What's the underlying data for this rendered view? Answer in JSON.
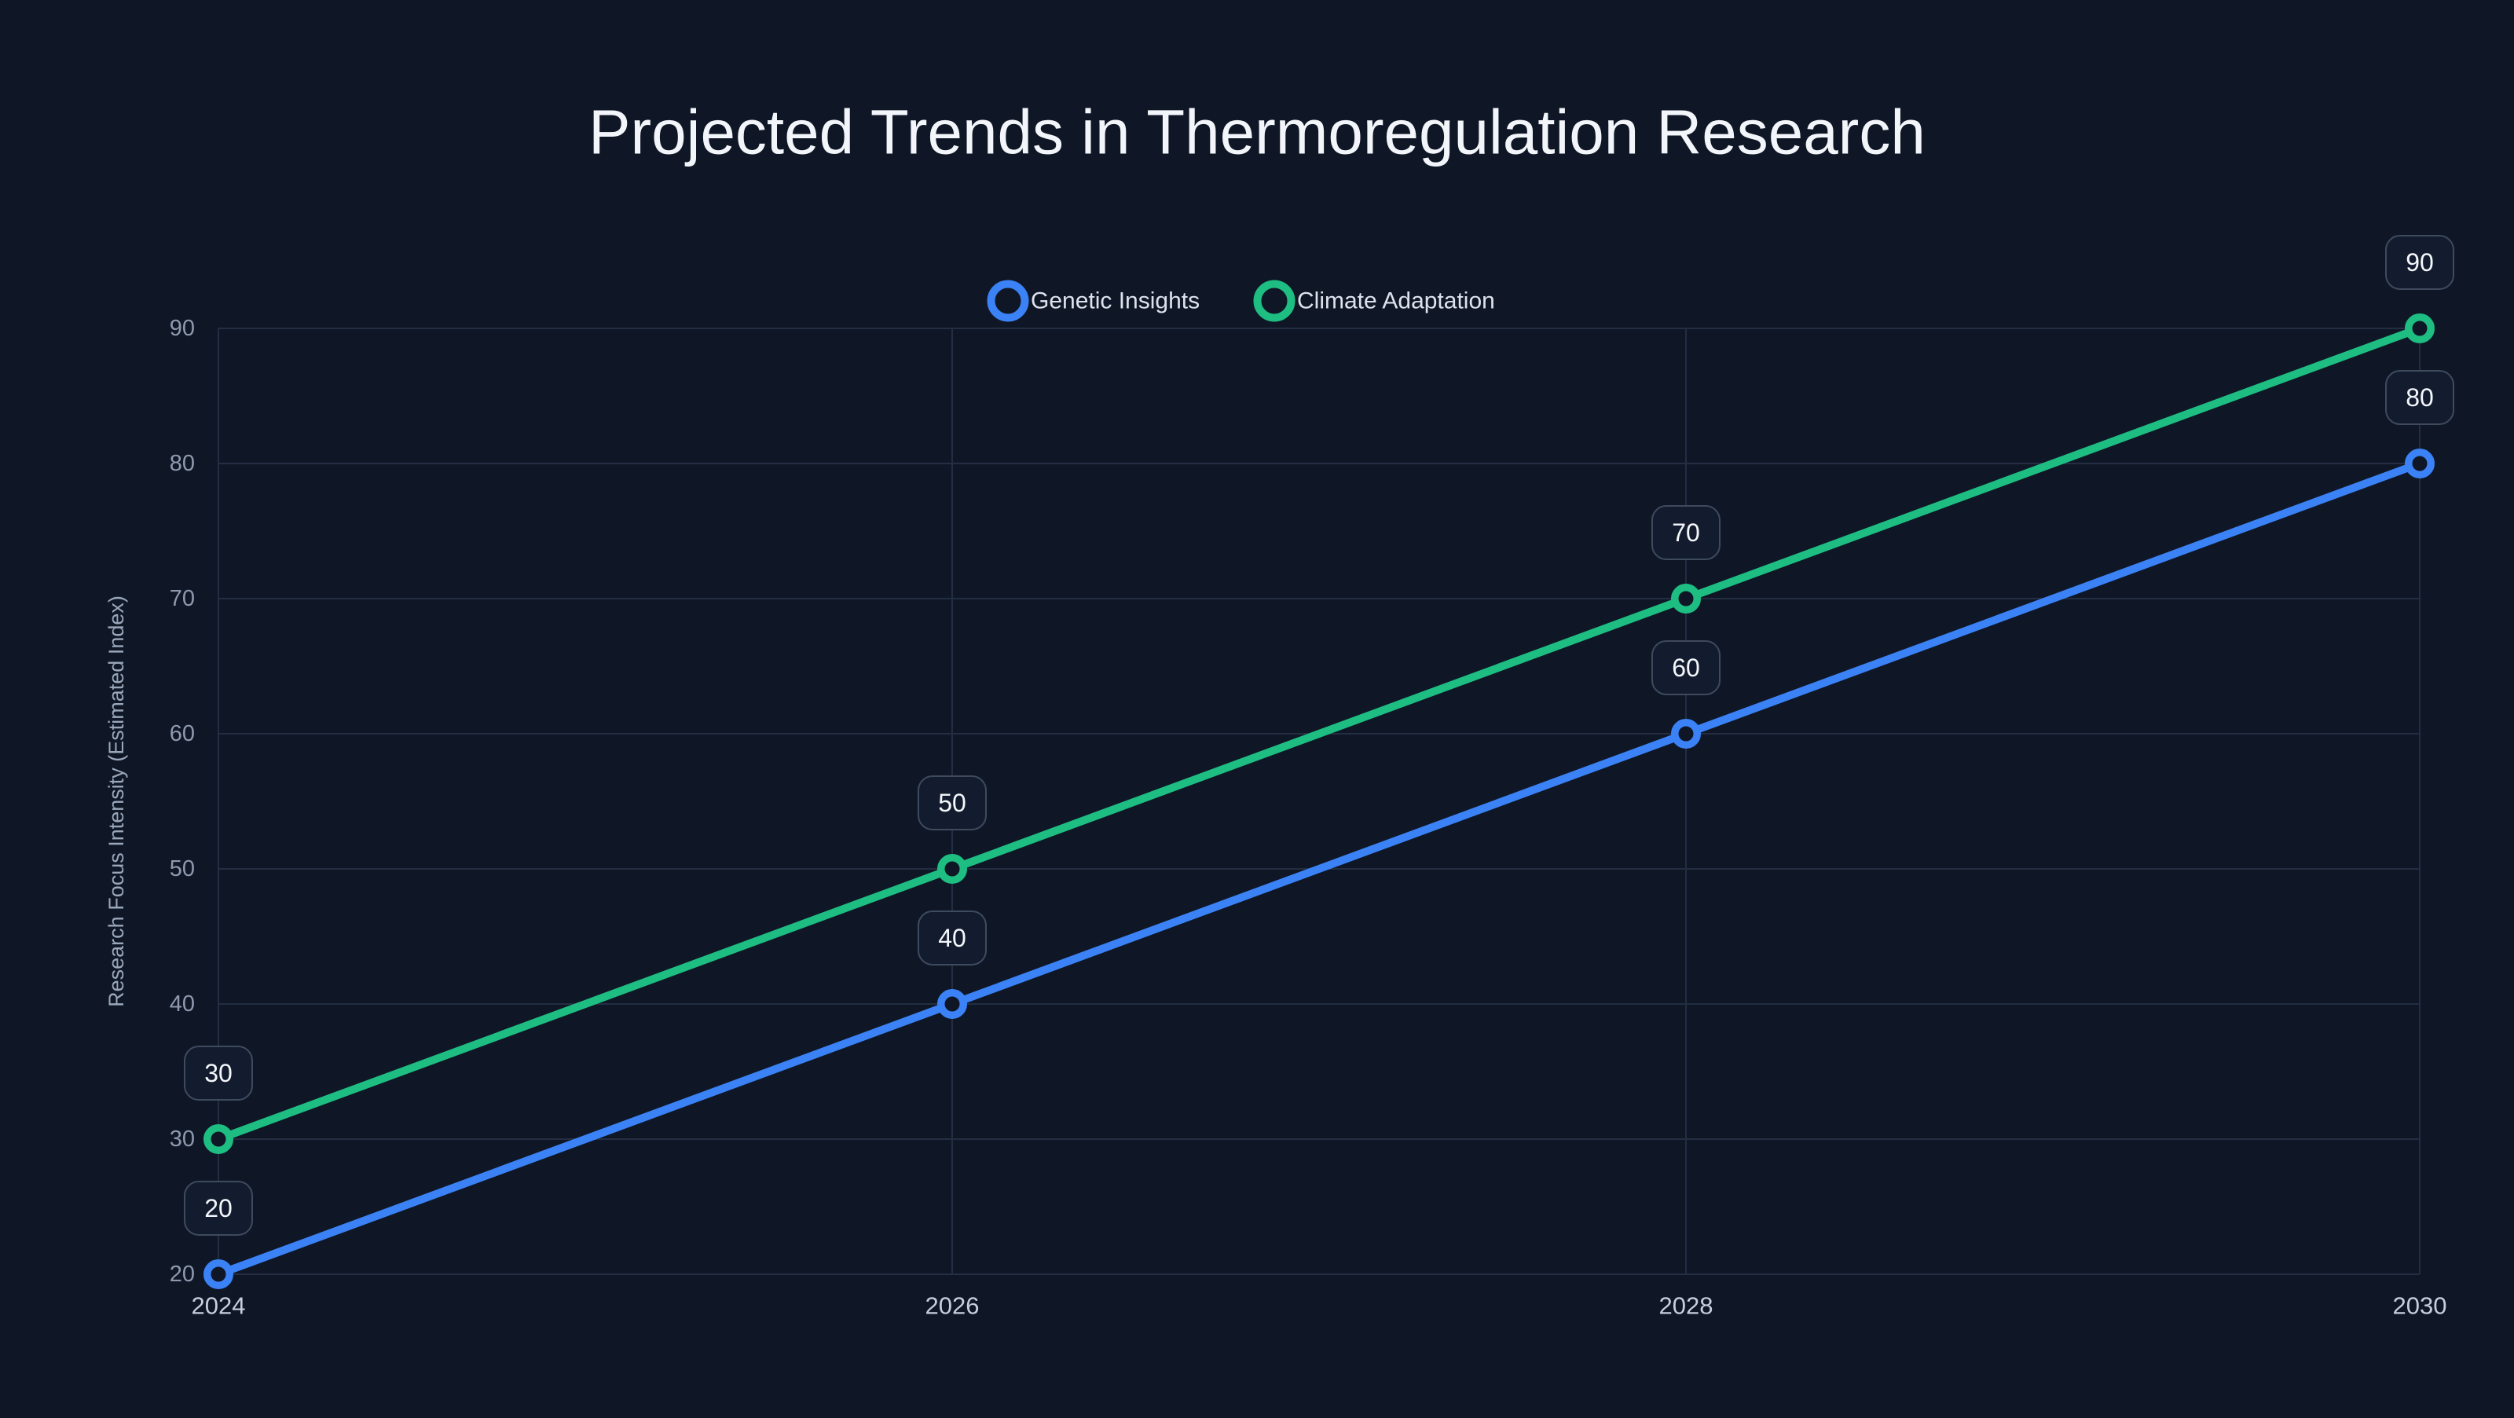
{
  "theme": {
    "background": "#0f1726",
    "grid_color": "#232e43",
    "title_color": "#f2f5f9",
    "legend_text_color": "#dce3ed",
    "x_tick_color": "#c6cfdd",
    "y_tick_color": "#8e99ad",
    "axis_label_color": "#9aa7bb",
    "data_label_text_color": "#f4f7fb",
    "data_label_box_fill": "#131c2e",
    "data_label_box_border": "#3e4a5e"
  },
  "chart_data": {
    "type": "line",
    "title": "Projected Trends in Thermoregulation Research",
    "xlabel": "",
    "ylabel": "Research Focus Intensity (Estimated Index)",
    "x": [
      2024,
      2026,
      2028,
      2030
    ],
    "xticks": [
      "2024",
      "2026",
      "2028",
      "2030"
    ],
    "yticks": [
      20,
      30,
      40,
      50,
      60,
      70,
      80,
      90
    ],
    "ylim": [
      20,
      90
    ],
    "grid": true,
    "legend_position": "top-center",
    "data_labels": true,
    "series": [
      {
        "name": "Genetic Insights",
        "color": "#3b82f6",
        "values": [
          20,
          40,
          60,
          80
        ],
        "labels": [
          "20",
          "40",
          "60",
          "80"
        ]
      },
      {
        "name": "Climate Adaptation",
        "color": "#1ebe82",
        "values": [
          30,
          50,
          70,
          90
        ],
        "labels": [
          "30",
          "50",
          "70",
          "90"
        ]
      }
    ]
  }
}
